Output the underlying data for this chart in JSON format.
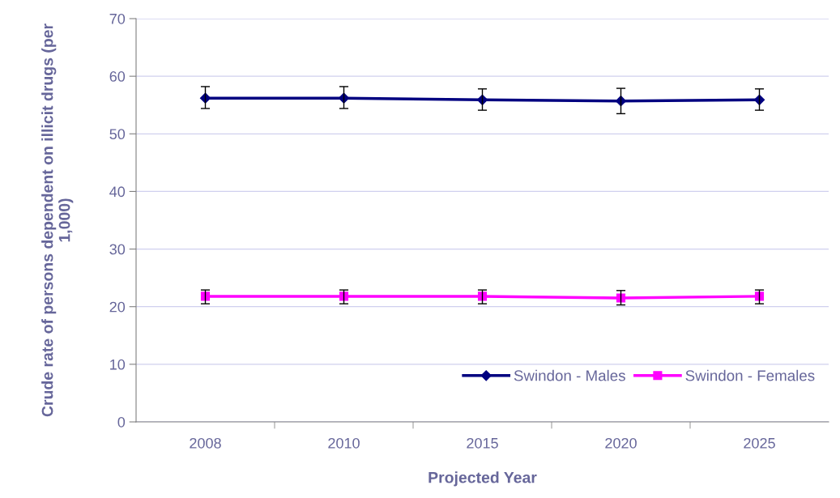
{
  "chart_data": {
    "type": "line",
    "xlabel": "Projected Year",
    "ylabel": "Crude rate of persons dependent on illicit drugs (per 1,000)",
    "categories": [
      "2008",
      "2010",
      "2015",
      "2020",
      "2025"
    ],
    "series": [
      {
        "name": "Swindon - Males",
        "color": "#000080",
        "marker": "diamond",
        "values": [
          56.2,
          56.2,
          55.9,
          55.7,
          55.9
        ],
        "errors": [
          [
            54.4,
            58.2
          ],
          [
            54.4,
            58.2
          ],
          [
            54.1,
            57.8
          ],
          [
            53.5,
            57.9
          ],
          [
            54.1,
            57.8
          ]
        ]
      },
      {
        "name": "Swindon - Females",
        "color": "#ff00ff",
        "marker": "square",
        "values": [
          21.8,
          21.8,
          21.8,
          21.5,
          21.8
        ],
        "errors": [
          [
            20.5,
            22.9
          ],
          [
            20.5,
            22.9
          ],
          [
            20.5,
            22.9
          ],
          [
            20.3,
            22.8
          ],
          [
            20.5,
            22.9
          ]
        ]
      }
    ],
    "ylim": [
      0,
      70
    ],
    "yticks": [
      0,
      10,
      20,
      30,
      40,
      50,
      60,
      70
    ],
    "grid": "y",
    "legend": "bottom right",
    "line_style": "solid"
  }
}
